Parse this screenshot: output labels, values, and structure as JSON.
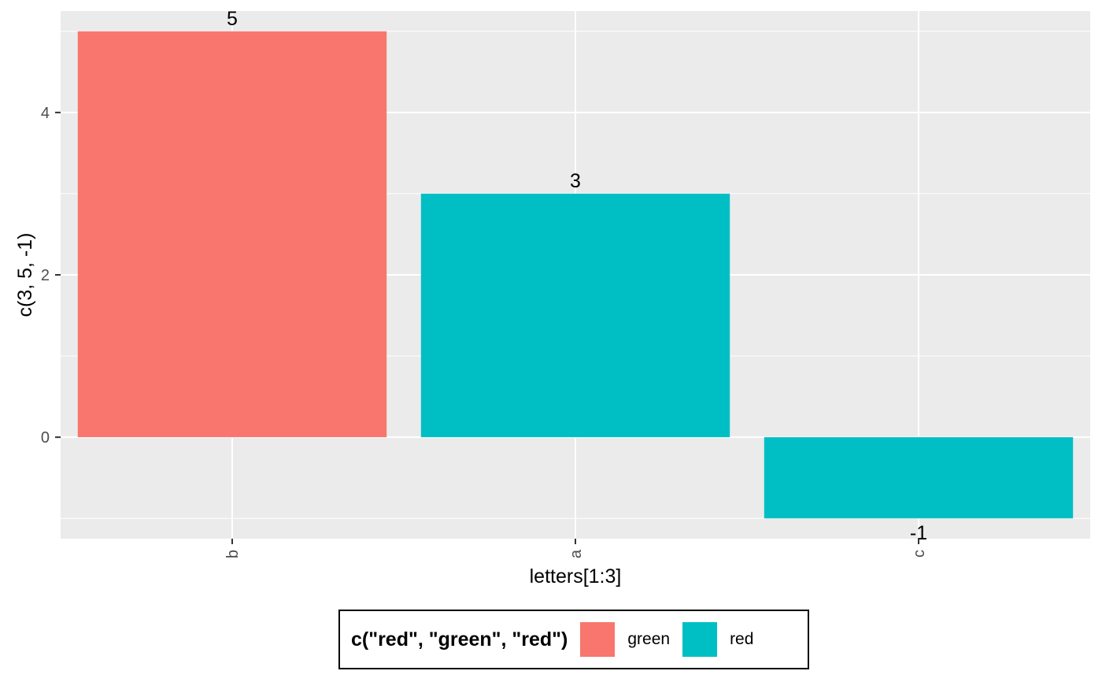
{
  "chart_data": {
    "type": "bar",
    "categories": [
      "b",
      "a",
      "c"
    ],
    "values": [
      5,
      3,
      -1
    ],
    "fill_groups": [
      "green",
      "red",
      "red"
    ],
    "data_labels": [
      "5",
      "3",
      "-1"
    ],
    "xlabel": "letters[1:3]",
    "ylabel": "c(3, 5, -1)",
    "ylim": [
      -1.25,
      5.25
    ],
    "yticks": [
      0,
      2,
      4
    ],
    "ytick_labels": [
      "0",
      "2",
      "4"
    ],
    "grid": true,
    "legend": {
      "title": "c(\"red\", \"green\", \"red\")",
      "position": "bottom",
      "entries": [
        {
          "label": "green",
          "color": "#F8766D"
        },
        {
          "label": "red",
          "color": "#00BFC4"
        }
      ]
    },
    "colors": {
      "panel_background": "#EBEBEB",
      "gridline": "#FFFFFF",
      "tick_text": "#4D4D4D"
    }
  }
}
